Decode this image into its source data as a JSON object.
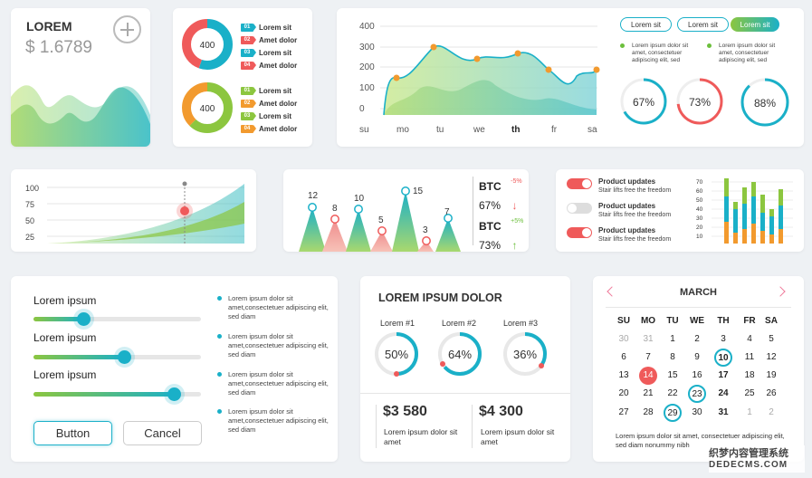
{
  "balance_card": {
    "title": "LOREM",
    "value": "$ 1.6789"
  },
  "donuts": [
    {
      "center": "400",
      "legend": [
        {
          "num": "01",
          "label": "Lorem sit",
          "color": "#1ab0c8"
        },
        {
          "num": "02",
          "label": "Amet dolor",
          "color": "#ef5a5a"
        },
        {
          "num": "03",
          "label": "Lorem sit",
          "color": "#1ab0c8"
        },
        {
          "num": "04",
          "label": "Amet dolor",
          "color": "#ef5a5a"
        }
      ]
    },
    {
      "center": "400",
      "legend": [
        {
          "num": "01",
          "label": "Lorem sit",
          "color": "#8cc63f"
        },
        {
          "num": "02",
          "label": "Amet dolor",
          "color": "#f29a2e"
        },
        {
          "num": "03",
          "label": "Lorem sit",
          "color": "#8cc63f"
        },
        {
          "num": "04",
          "label": "Amet dolor",
          "color": "#f29a2e"
        }
      ]
    }
  ],
  "area_chart": {
    "y_ticks": [
      "400",
      "300",
      "200",
      "100",
      "0"
    ],
    "x_labels": [
      "su",
      "mo",
      "tu",
      "we",
      "th",
      "fr",
      "sa"
    ],
    "bold_label": "th"
  },
  "pills": [
    "Lorem sit",
    "Lorem sit",
    "Lorem sit"
  ],
  "pill_notes": [
    "Lorem ipsum dolor sit amet, consectetuer adipiscing elit, sed",
    "Lorem ipsum dolor sit amet, consectetuer adipiscing elit, sed"
  ],
  "gauges": [
    {
      "label": "67%",
      "value": 67,
      "color": "#1ab0c8"
    },
    {
      "label": "73%",
      "value": 73,
      "color": "#ef5a5a"
    },
    {
      "label": "88%",
      "value": 88,
      "color": "#1ab0c8"
    }
  ],
  "growth_chart": {
    "y_ticks": [
      "100",
      "75",
      "50",
      "25"
    ]
  },
  "peaks": [
    {
      "label": "12",
      "color": "#1ab0c8"
    },
    {
      "label": "8",
      "color": "#ef5a5a"
    },
    {
      "label": "10",
      "color": "#1ab0c8"
    },
    {
      "label": "5",
      "color": "#ef5a5a"
    },
    {
      "label": "15",
      "color": "#1ab0c8"
    },
    {
      "label": "3",
      "color": "#ef5a5a"
    },
    {
      "label": "7",
      "color": "#1ab0c8"
    }
  ],
  "btc": [
    {
      "name": "BTC",
      "change": "-5%",
      "value": "67%",
      "arrow": "↓",
      "color": "#ef5a5a"
    },
    {
      "name": "BTC",
      "change": "+5%",
      "value": "73%",
      "arrow": "↑",
      "color": "#6cbf3c"
    }
  ],
  "updates": [
    {
      "title": "Product updates",
      "desc": "Stair lifts free the freedom",
      "on": true
    },
    {
      "title": "Product updates",
      "desc": "Stair lifts free the freedom",
      "on": false
    },
    {
      "title": "Product updates",
      "desc": "Stair lifts free the freedom",
      "on": true
    }
  ],
  "bar_chart": {
    "y_ticks": [
      "70",
      "60",
      "50",
      "40",
      "30",
      "20",
      "10"
    ]
  },
  "sliders": [
    {
      "label": "Lorem ipsum",
      "value": 0.35
    },
    {
      "label": "Lorem ipsum",
      "value": 0.54
    },
    {
      "label": "Lorem ipsum",
      "value": 0.87
    }
  ],
  "bullets": [
    "Lorem ipsum dolor sit amet,consectetuer adipiscing elit, sed diam",
    "Lorem ipsum dolor sit amet,consectetuer adipiscing elit, sed diam",
    "Lorem ipsum dolor sit amet,consectetuer adipiscing elit, sed diam",
    "Lorem ipsum dolor sit amet,consectetuer adipiscing elit, sed diam"
  ],
  "buttons": {
    "primary": "Button",
    "secondary": "Cancel"
  },
  "stats": {
    "title": "LOREM IPSUM DOLOR",
    "rings": [
      {
        "label": "Lorem #1",
        "value": "50%",
        "pct": 50
      },
      {
        "label": "Lorem #2",
        "value": "64%",
        "pct": 64
      },
      {
        "label": "Lorem #3",
        "value": "36%",
        "pct": 36
      }
    ],
    "totals": [
      {
        "amount": "$3 580",
        "desc": "Lorem ipsum dolor sit amet"
      },
      {
        "amount": "$4 300",
        "desc": "Lorem ipsum dolor sit amet"
      }
    ]
  },
  "calendar": {
    "month": "MARCH",
    "weekdays": [
      "SU",
      "MO",
      "TU",
      "WE",
      "TH",
      "FR",
      "SA"
    ],
    "weeks": [
      [
        "30",
        "31",
        "1",
        "2",
        "3",
        "4",
        "5"
      ],
      [
        "6",
        "7",
        "8",
        "9",
        "10",
        "11",
        "12"
      ],
      [
        "13",
        "14",
        "15",
        "16",
        "17",
        "18",
        "19"
      ],
      [
        "20",
        "21",
        "22",
        "23",
        "24",
        "25",
        "26"
      ],
      [
        "27",
        "28",
        "29",
        "30",
        "31",
        "1",
        "2"
      ]
    ],
    "note": "Lorem ipsum dolor sit amet, consectetuer adipiscing elit, sed diam nonummy nibh"
  },
  "watermark": {
    "line1": "织梦内容管理系统",
    "line2": "DEDECMS.COM"
  }
}
